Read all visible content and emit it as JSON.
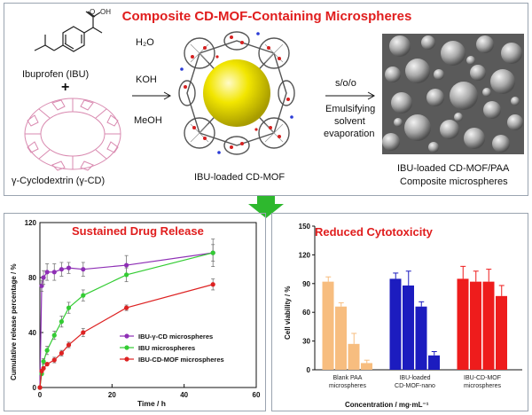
{
  "scheme": {
    "title": "Composite CD-MOF-Containing Microspheres",
    "ibuprofen_label": "Ibuprofen (IBU)",
    "plus": "+",
    "cd_label": "γ-Cyclodextrin (γ-CD)",
    "reagents": [
      "H₂O",
      "KOH",
      "MeOH"
    ],
    "mof_label": "IBU-loaded CD-MOF",
    "process_line1": "s/o/o",
    "process_line2": "Emulsifying",
    "process_line3": "solvent",
    "process_line4": "evaporation",
    "product_line1": "IBU-loaded CD-MOF/PAA",
    "product_line2": "Composite microspheres",
    "colors": {
      "title": "#e01d1d",
      "arrow_down": "#2eb82e",
      "sphere": "#f2e600"
    }
  },
  "chart_data": [
    {
      "type": "line",
      "title": "Sustained Drug Release",
      "xlabel": "Time / h",
      "ylabel": "Cumulative release percentage / %",
      "xlim": [
        0,
        60
      ],
      "ylim": [
        0,
        120
      ],
      "xticks": [
        "0",
        "20",
        "40",
        "60"
      ],
      "yticks": [
        "0",
        "40",
        "80",
        "120"
      ],
      "legend_placement": "center-right",
      "series": [
        {
          "name": "IBU-γ-CD microspheres",
          "color": "#8e2fb5",
          "x": [
            0,
            0.5,
            1,
            2,
            4,
            6,
            8,
            12,
            24,
            48
          ],
          "y": [
            0,
            74,
            80,
            84,
            84,
            86,
            87,
            86,
            89,
            98
          ],
          "err": [
            0,
            4,
            5,
            6,
            6,
            5,
            4,
            5,
            7,
            10
          ]
        },
        {
          "name": "IBU microspheres",
          "color": "#33cc33",
          "x": [
            0,
            0.5,
            1,
            2,
            4,
            6,
            8,
            12,
            24,
            48
          ],
          "y": [
            0,
            10,
            19,
            27,
            38,
            48,
            58,
            67,
            82,
            98
          ],
          "err": [
            0,
            1,
            2,
            3,
            3,
            4,
            4,
            4,
            5,
            6
          ]
        },
        {
          "name": "IBU-CD-MOF microspheres",
          "color": "#dd2222",
          "x": [
            0,
            0.5,
            1,
            2,
            4,
            6,
            8,
            12,
            24,
            48
          ],
          "y": [
            0,
            12,
            14,
            17,
            20,
            25,
            31,
            40,
            58,
            75
          ],
          "err": [
            0,
            1,
            1,
            1,
            2,
            2,
            2,
            3,
            2,
            4
          ]
        }
      ]
    },
    {
      "type": "bar",
      "title": "Reduced Cytotoxicity",
      "xlabel": "Concentration / mg·mL⁻¹",
      "ylabel": "Cell viability / %",
      "ylim": [
        0,
        150
      ],
      "yticks": [
        "0",
        "30",
        "60",
        "90",
        "120",
        "150"
      ],
      "groups": [
        {
          "label_line1": "Blank PAA",
          "label_line2": "microspheres",
          "colors": [
            "#f7bd7f",
            "#f7bd7f",
            "#f7bd7f",
            "#f7bd7f"
          ],
          "values": [
            92,
            66,
            27,
            7
          ],
          "err": [
            5,
            4,
            11,
            3
          ]
        },
        {
          "label_line1": "IBU-loaded",
          "label_line2": "CD-MOF-nano",
          "colors": [
            "#1c1cbf",
            "#1c1cbf",
            "#1c1cbf",
            "#1c1cbf"
          ],
          "values": [
            95,
            88,
            66,
            15
          ],
          "err": [
            6,
            15,
            5,
            4
          ]
        },
        {
          "label_line1": "IBU-CD-MOF",
          "label_line2": "microspheres",
          "colors": [
            "#ee1c1c",
            "#ee1c1c",
            "#ee1c1c",
            "#ee1c1c"
          ],
          "values": [
            95,
            92,
            92,
            77
          ],
          "err": [
            13,
            11,
            13,
            11
          ]
        }
      ]
    }
  ]
}
